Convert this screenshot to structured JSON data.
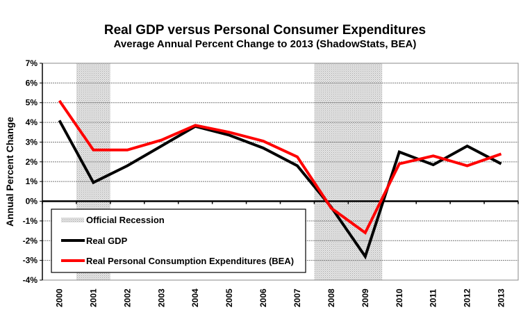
{
  "chart_data": {
    "type": "line",
    "title": "Real GDP versus Personal Consumer Expenditures",
    "subtitle": "Average Annual Percent Change to 2013 (ShadowStats, BEA)",
    "xlabel": "",
    "ylabel": "Annual Percent Change",
    "ylim": [
      -4,
      7
    ],
    "yticks": [
      -4,
      -3,
      -2,
      -1,
      0,
      1,
      2,
      3,
      4,
      5,
      6,
      7
    ],
    "ytick_labels": [
      "-4%",
      "-3%",
      "-2%",
      "-1%",
      "0%",
      "1%",
      "2%",
      "3%",
      "4%",
      "5%",
      "6%",
      "7%"
    ],
    "grid": true,
    "categories": [
      "2000",
      "2001",
      "2002",
      "2003",
      "2004",
      "2005",
      "2006",
      "2007",
      "2008",
      "2009",
      "2010",
      "2011",
      "2012",
      "2013"
    ],
    "series": [
      {
        "name": "Real GDP",
        "color": "#000000",
        "values": [
          4.1,
          0.95,
          1.8,
          2.8,
          3.8,
          3.35,
          2.7,
          1.8,
          -0.3,
          -2.8,
          2.5,
          1.85,
          2.8,
          1.9
        ]
      },
      {
        "name": "Real Personal Consumption Expenditures (BEA)",
        "color": "#ff0000",
        "values": [
          5.1,
          2.6,
          2.6,
          3.1,
          3.85,
          3.5,
          3.05,
          2.25,
          -0.35,
          -1.6,
          1.9,
          2.3,
          1.8,
          2.4
        ]
      }
    ],
    "shaded_regions": {
      "name": "Official Recession",
      "color": "#c8c8c8",
      "ranges": [
        [
          "2001",
          "2001"
        ],
        [
          "2008",
          "2009"
        ]
      ]
    },
    "legend": {
      "placement": "bottom-left",
      "entries": [
        "Official Recession",
        "Real GDP",
        "Real Personal Consumption Expenditures (BEA)"
      ]
    }
  }
}
